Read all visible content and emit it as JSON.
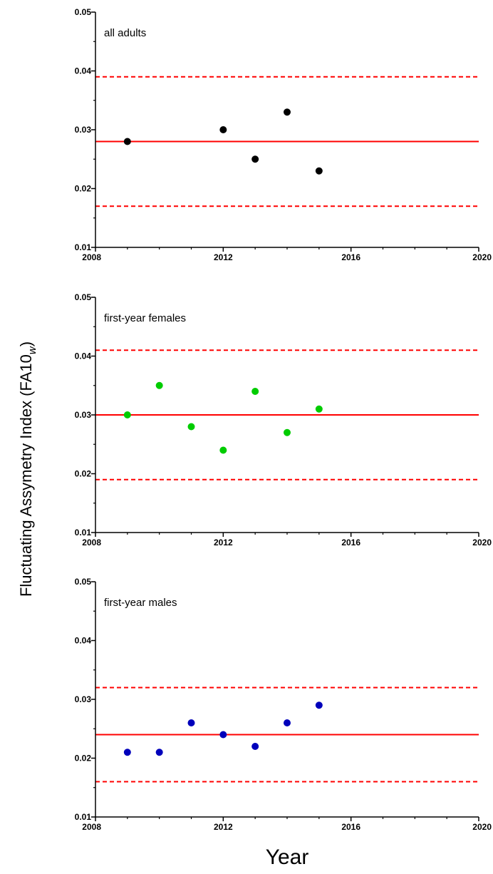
{
  "figure": {
    "ylabel_main": "Fluctuating Assymetry Index (FA10",
    "ylabel_sub": "w",
    "ylabel_close": ")",
    "xlabel": "Year"
  },
  "chart_data": [
    {
      "type": "scatter",
      "panel_label": "all adults",
      "x": [
        2009,
        2012,
        2013,
        2014,
        2015
      ],
      "y": [
        0.028,
        0.03,
        0.025,
        0.033,
        0.023
      ],
      "mean": 0.028,
      "bounds": [
        0.017,
        0.039
      ],
      "point_color": "#000000",
      "line_color": "#ff0000",
      "xlim": [
        2008,
        2020
      ],
      "ylim": [
        0.01,
        0.05
      ],
      "xticks": [
        "2008",
        "2012",
        "2016",
        "2020"
      ],
      "yticks": [
        "0.01",
        "0.02",
        "0.03",
        "0.04",
        "0.05"
      ],
      "grid": false
    },
    {
      "type": "scatter",
      "panel_label": "first-year females",
      "x": [
        2009,
        2010,
        2011,
        2012,
        2013,
        2014,
        2015
      ],
      "y": [
        0.03,
        0.035,
        0.028,
        0.024,
        0.034,
        0.027,
        0.031
      ],
      "mean": 0.03,
      "bounds": [
        0.019,
        0.041
      ],
      "point_color": "#00cc00",
      "line_color": "#ff0000",
      "xlim": [
        2008,
        2020
      ],
      "ylim": [
        0.01,
        0.05
      ],
      "xticks": [
        "2008",
        "2012",
        "2016",
        "2020"
      ],
      "yticks": [
        "0.01",
        "0.02",
        "0.03",
        "0.04",
        "0.05"
      ],
      "grid": false
    },
    {
      "type": "scatter",
      "panel_label": "first-year males",
      "x": [
        2009,
        2010,
        2011,
        2012,
        2013,
        2014,
        2015
      ],
      "y": [
        0.021,
        0.021,
        0.026,
        0.024,
        0.022,
        0.026,
        0.029
      ],
      "mean": 0.024,
      "bounds": [
        0.016,
        0.032
      ],
      "point_color": "#0000bb",
      "line_color": "#ff0000",
      "xlim": [
        2008,
        2020
      ],
      "ylim": [
        0.01,
        0.05
      ],
      "xticks": [
        "2008",
        "2012",
        "2016",
        "2020"
      ],
      "yticks": [
        "0.01",
        "0.02",
        "0.03",
        "0.04",
        "0.05"
      ],
      "grid": false
    }
  ]
}
